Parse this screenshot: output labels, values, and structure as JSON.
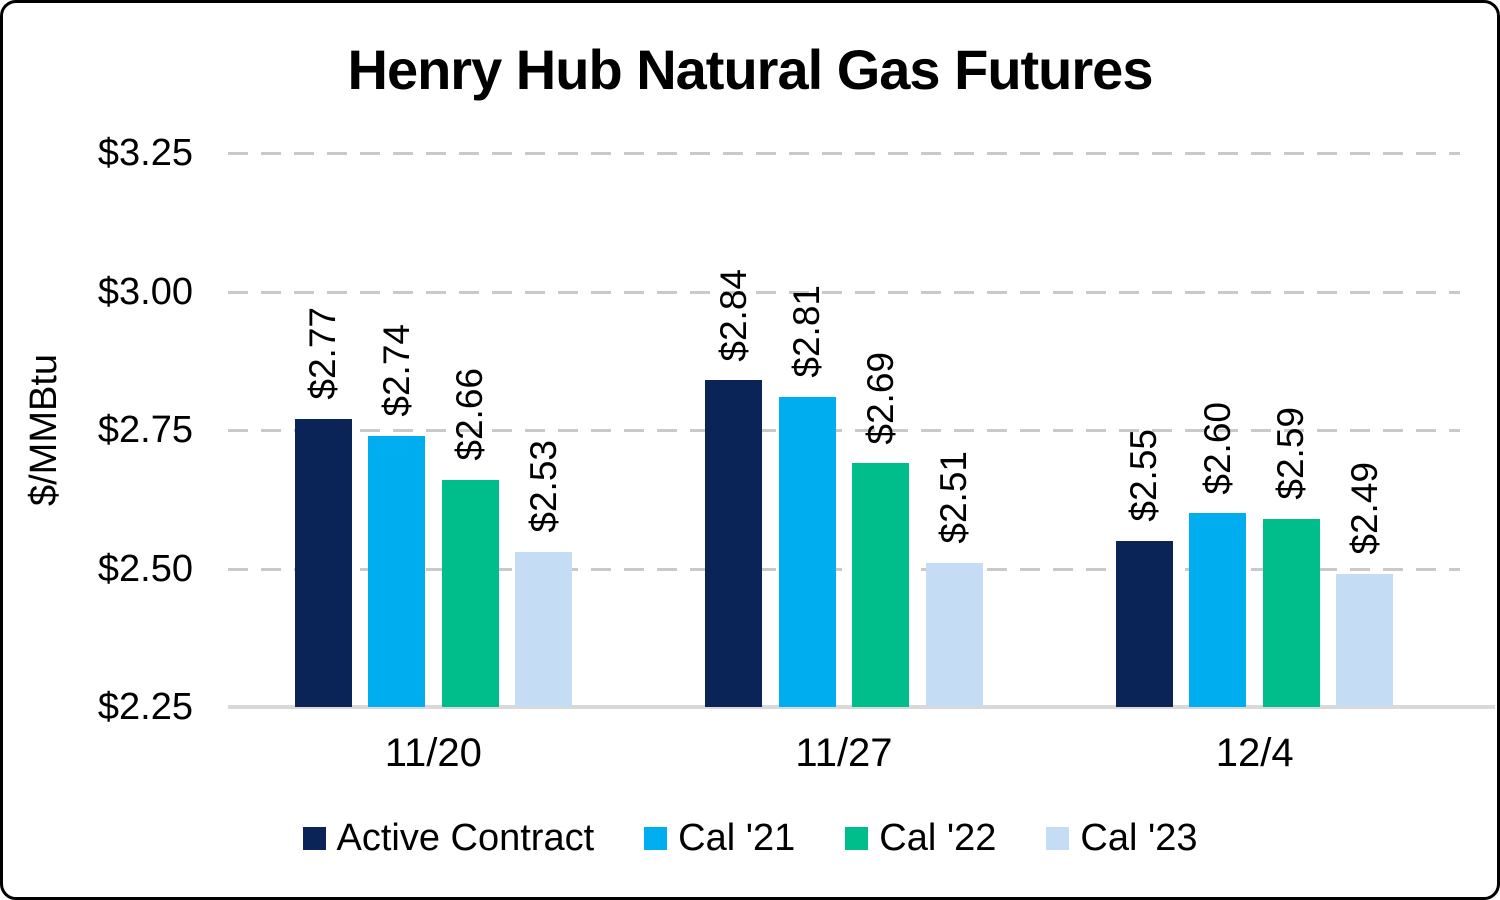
{
  "chart_data": {
    "type": "bar",
    "title": "Henry Hub Natural Gas Futures",
    "ylabel": "$/MMBtu",
    "categories": [
      "11/20",
      "11/27",
      "12/4"
    ],
    "series": [
      {
        "name": "Active Contract",
        "color": "#0A2458",
        "values": [
          2.77,
          2.84,
          2.55
        ],
        "value_labels": [
          "$2.77",
          "$2.84",
          "$2.55"
        ]
      },
      {
        "name": "Cal '21",
        "color": "#00AEEF",
        "values": [
          2.74,
          2.81,
          2.6
        ],
        "value_labels": [
          "$2.74",
          "$2.81",
          "$2.60"
        ]
      },
      {
        "name": "Cal '22",
        "color": "#00BE8C",
        "values": [
          2.66,
          2.69,
          2.59
        ],
        "value_labels": [
          "$2.66",
          "$2.69",
          "$2.59"
        ]
      },
      {
        "name": "Cal '23",
        "color": "#C5DDF4",
        "values": [
          2.53,
          2.51,
          2.49
        ],
        "value_labels": [
          "$2.53",
          "$2.51",
          "$2.49"
        ]
      }
    ],
    "y_axis": {
      "min": 2.25,
      "max": 3.25,
      "tick_step": 0.25,
      "tick_labels": [
        "$2.25",
        "$2.50",
        "$2.75",
        "$3.00",
        "$3.25"
      ]
    },
    "grid": "horizontal-dashed",
    "legend_position": "bottom",
    "colors": {
      "gridline": "#C9C9C9",
      "axis_line": "#D9D9D9",
      "text": "#000000",
      "background": "#FFFFFF",
      "frame_border": "#000000"
    }
  }
}
